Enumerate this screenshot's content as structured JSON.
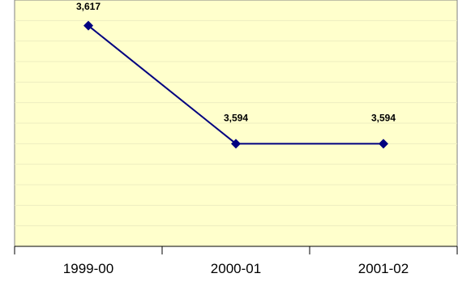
{
  "chart_data": {
    "type": "line",
    "categories": [
      "1999-00",
      "2000-01",
      "2001-02"
    ],
    "series": [
      {
        "values": [
          3617,
          3594,
          3594
        ],
        "labels": [
          "3,617",
          "3,594",
          "3,594"
        ]
      }
    ],
    "ylim": [
      3574,
      3622
    ],
    "grid": true,
    "legend": "none",
    "colors": {
      "plot_background": "#FFFFCC",
      "line": "#000080",
      "marker": "#000080",
      "gridline": "#EDEDC0",
      "axis": "#808080"
    }
  }
}
